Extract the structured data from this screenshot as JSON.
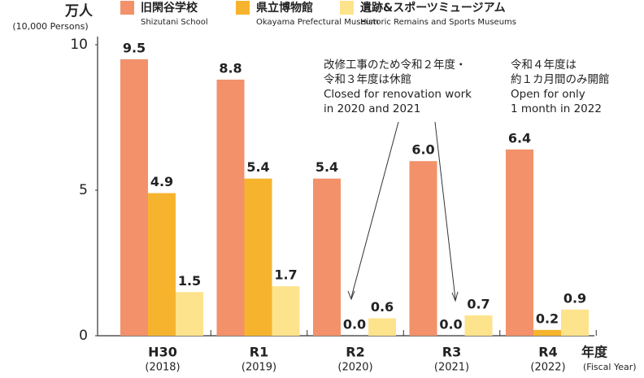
{
  "chart_data": {
    "type": "bar",
    "y_label": "万人",
    "y_label_en": "(10,000 Persons)",
    "x_label": "年度",
    "x_label_en": "(Fiscal Year)",
    "categories": [
      "H30",
      "R1",
      "R2",
      "R3",
      "R4"
    ],
    "category_years": [
      "(2018)",
      "(2019)",
      "(2020)",
      "(2021)",
      "(2022)"
    ],
    "series": [
      {
        "name": "旧閑谷学校",
        "name_en": "Shizutani School",
        "color": "#f2916a",
        "values": [
          9.5,
          8.8,
          5.4,
          6.0,
          6.4
        ],
        "value_labels": [
          "9.5",
          "8.8",
          "5.4",
          "6.0",
          "6.4"
        ]
      },
      {
        "name": "県立博物館",
        "name_en": "Okayama Prefectural Museum",
        "color": "#f6b42e",
        "values": [
          4.9,
          5.4,
          0,
          0,
          0.2
        ],
        "value_labels": [
          "4.9",
          "5.4",
          "0.0",
          "0.0",
          "0.2"
        ]
      },
      {
        "name": "遺跡&スポーツミュージアム",
        "name_en": "Historic Remains and Sports Museums",
        "color": "#fde38c",
        "values": [
          1.5,
          1.7,
          0.6,
          0.7,
          0.9
        ],
        "value_labels": [
          "1.5",
          "1.7",
          "0.6",
          "0.7",
          "0.9"
        ]
      }
    ],
    "ylim": [
      0,
      10
    ],
    "yticks": [
      0,
      5,
      10
    ],
    "annotations": [
      {
        "lines": [
          "改修工事のため令和２年度・",
          "令和３年度は休館",
          "Closed for renovation work",
          " in 2020 and 2021"
        ]
      },
      {
        "lines": [
          "令和４年度は",
          "約１カ月間のみ開館",
          "Open for only",
          "1 month in 2022"
        ]
      }
    ]
  }
}
